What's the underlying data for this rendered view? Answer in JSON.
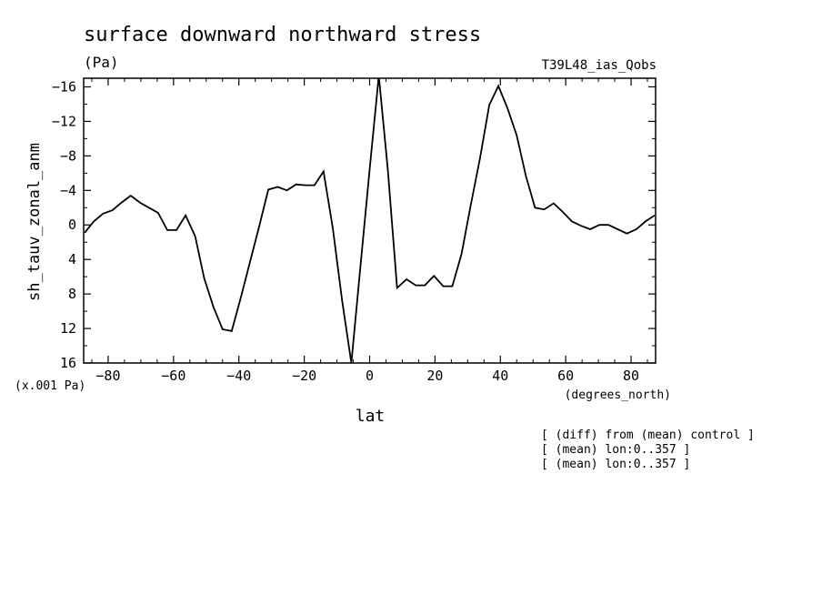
{
  "chart_data": {
    "type": "line",
    "title": "surface downward northward stress",
    "units": "(Pa)",
    "subtitle": "T39L48_ias_Qobs",
    "ylabel": "sh_tauv_zonal_anm",
    "y_scale_note": "(x.001 Pa)",
    "xlabel": "lat",
    "x_unit": "(degrees_north)",
    "xlim": [
      -87.5,
      87.5
    ],
    "ylim": [
      16,
      -17
    ],
    "y_inverted": true,
    "x_ticks": [
      -80,
      -60,
      -40,
      -20,
      0,
      20,
      40,
      60,
      80
    ],
    "x_tick_labels": [
      "−80",
      "−60",
      "−40",
      "−20",
      "0",
      "20",
      "40",
      "60",
      "80"
    ],
    "y_ticks": [
      -16,
      -12,
      -8,
      -4,
      0,
      4,
      8,
      12,
      16
    ],
    "y_tick_labels": [
      "−16",
      "−12",
      "−8",
      "−4",
      "0",
      "4",
      "8",
      "12",
      "16"
    ],
    "notes": [
      "[ (diff) from (mean) control ]",
      "[ (mean) lon:0..357 ]",
      "[ (mean) lon:0..357 ]"
    ],
    "grid": false,
    "series": [
      {
        "x": [
          -87.2,
          -84.4,
          -81.6,
          -78.7,
          -75.9,
          -73.1,
          -70.3,
          -67.5,
          -64.7,
          -61.9,
          -59.1,
          -56.3,
          -53.4,
          -50.6,
          -47.8,
          -45.0,
          -42.2,
          -39.4,
          -36.6,
          -33.8,
          -31.0,
          -28.1,
          -25.3,
          -22.5,
          -19.7,
          -16.9,
          -14.1,
          -11.3,
          -8.4,
          -5.6,
          -2.8,
          0.0,
          2.8,
          5.6,
          8.4,
          11.3,
          14.1,
          16.9,
          19.7,
          22.5,
          25.3,
          28.1,
          31.0,
          33.8,
          36.6,
          39.4,
          42.2,
          45.0,
          47.8,
          50.6,
          53.4,
          56.3,
          59.1,
          61.9,
          64.7,
          67.5,
          70.3,
          73.1,
          75.9,
          78.7,
          81.6,
          84.4,
          87.2
        ],
        "y": [
          0.9,
          -0.4,
          -1.3,
          -1.7,
          -2.6,
          -3.4,
          -2.6,
          -2.0,
          -1.4,
          0.6,
          0.6,
          -1.1,
          1.3,
          6.2,
          9.5,
          12.1,
          12.3,
          8.4,
          4.3,
          0.2,
          -4.1,
          -4.4,
          -4.0,
          -4.7,
          -4.6,
          -4.6,
          -6.2,
          0.3,
          8.8,
          16.0,
          4.8,
          -6.4,
          -17.3,
          -6.3,
          7.3,
          6.3,
          7.0,
          7.0,
          5.9,
          7.1,
          7.1,
          3.4,
          -2.4,
          -7.8,
          -13.9,
          -16.1,
          -13.5,
          -10.4,
          -5.7,
          -2.0,
          -1.8,
          -2.5,
          -1.5,
          -0.4,
          0.1,
          0.5,
          0.0,
          0.0,
          0.5,
          1.0,
          0.5,
          -0.4,
          -1.1
        ]
      }
    ]
  }
}
